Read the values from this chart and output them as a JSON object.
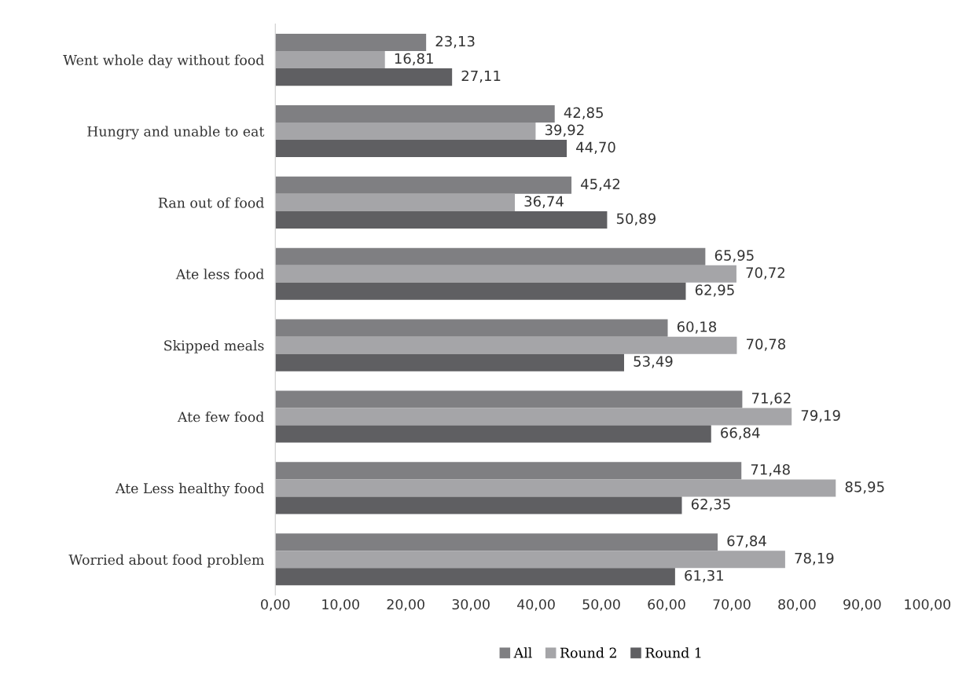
{
  "chart_data": {
    "type": "bar",
    "orientation": "horizontal",
    "categories": [
      "Went whole day without food",
      "Hungry and unable to eat",
      "Ran out of food",
      "Ate less food",
      "Skipped meals",
      "Ate few food",
      "Ate Less healthy food",
      "Worried about food problem"
    ],
    "series": [
      {
        "name": "All",
        "color": "#7f7f82",
        "values": [
          23.13,
          42.85,
          45.42,
          65.95,
          60.18,
          71.62,
          71.48,
          67.84
        ],
        "value_labels": [
          "23,13",
          "42,85",
          "45,42",
          "65,95",
          "60,18",
          "71,62",
          "71,48",
          "67,84"
        ]
      },
      {
        "name": "Round 2",
        "color": "#a5a5a8",
        "values": [
          16.81,
          39.92,
          36.74,
          70.72,
          70.78,
          79.19,
          85.95,
          78.19
        ],
        "value_labels": [
          "16,81",
          "39,92",
          "36,74",
          "70,72",
          "70,78",
          "79,19",
          "85,95",
          "78,19"
        ]
      },
      {
        "name": "Round 1",
        "color": "#5f5f62",
        "values": [
          27.11,
          44.7,
          50.89,
          62.95,
          53.49,
          66.84,
          62.35,
          61.31
        ],
        "value_labels": [
          "27,11",
          "44,70",
          "50,89",
          "62,95",
          "53,49",
          "66,84",
          "62,35",
          "61,31"
        ]
      }
    ],
    "xlim": [
      0,
      100
    ],
    "xticks": [
      {
        "value": 0,
        "label": "0,00"
      },
      {
        "value": 10,
        "label": "10,00"
      },
      {
        "value": 20,
        "label": "20,00"
      },
      {
        "value": 30,
        "label": "30,00"
      },
      {
        "value": 40,
        "label": "40,00"
      },
      {
        "value": 50,
        "label": "50,00"
      },
      {
        "value": 60,
        "label": "60,00"
      },
      {
        "value": 70,
        "label": "70,00"
      },
      {
        "value": 80,
        "label": "80,00"
      },
      {
        "value": 90,
        "label": "90,00"
      },
      {
        "value": 100,
        "label": "100,00"
      }
    ],
    "grid": false,
    "legend": "bottom"
  }
}
